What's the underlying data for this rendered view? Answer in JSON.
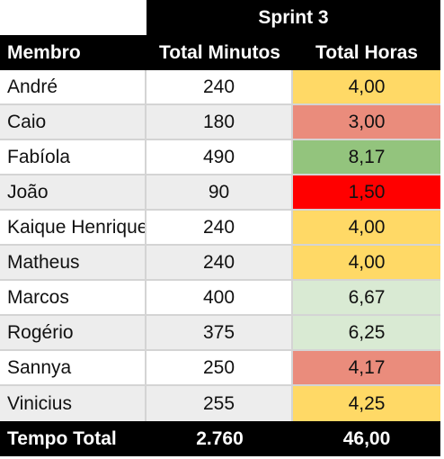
{
  "sprint_title": "Sprint 3",
  "columns": [
    "Membro",
    "Total Minutos",
    "Total Horas"
  ],
  "rows": [
    {
      "membro": "André",
      "minutos": "240",
      "horas": "4,00",
      "color": "#ffd966"
    },
    {
      "membro": "Caio",
      "minutos": "180",
      "horas": "3,00",
      "color": "#ea8c7c"
    },
    {
      "membro": "Fabíola",
      "minutos": "490",
      "horas": "8,17",
      "color": "#93c47d"
    },
    {
      "membro": "João",
      "minutos": "90",
      "horas": "1,50",
      "color": "#ff0000"
    },
    {
      "membro": "Kaique Henrique",
      "minutos": "240",
      "horas": "4,00",
      "color": "#ffd966"
    },
    {
      "membro": "Matheus",
      "minutos": "240",
      "horas": "4,00",
      "color": "#ffd966"
    },
    {
      "membro": "Marcos",
      "minutos": "400",
      "horas": "6,67",
      "color": "#d9ead3"
    },
    {
      "membro": "Rogério",
      "minutos": "375",
      "horas": "6,25",
      "color": "#d9ead3"
    },
    {
      "membro": "Sannya",
      "minutos": "250",
      "horas": "4,17",
      "color": "#ea8c7c"
    },
    {
      "membro": "Vinicius",
      "minutos": "255",
      "horas": "4,25",
      "color": "#ffd966"
    }
  ],
  "total": {
    "label": "Tempo Total",
    "minutos": "2.760",
    "horas": "46,00"
  }
}
